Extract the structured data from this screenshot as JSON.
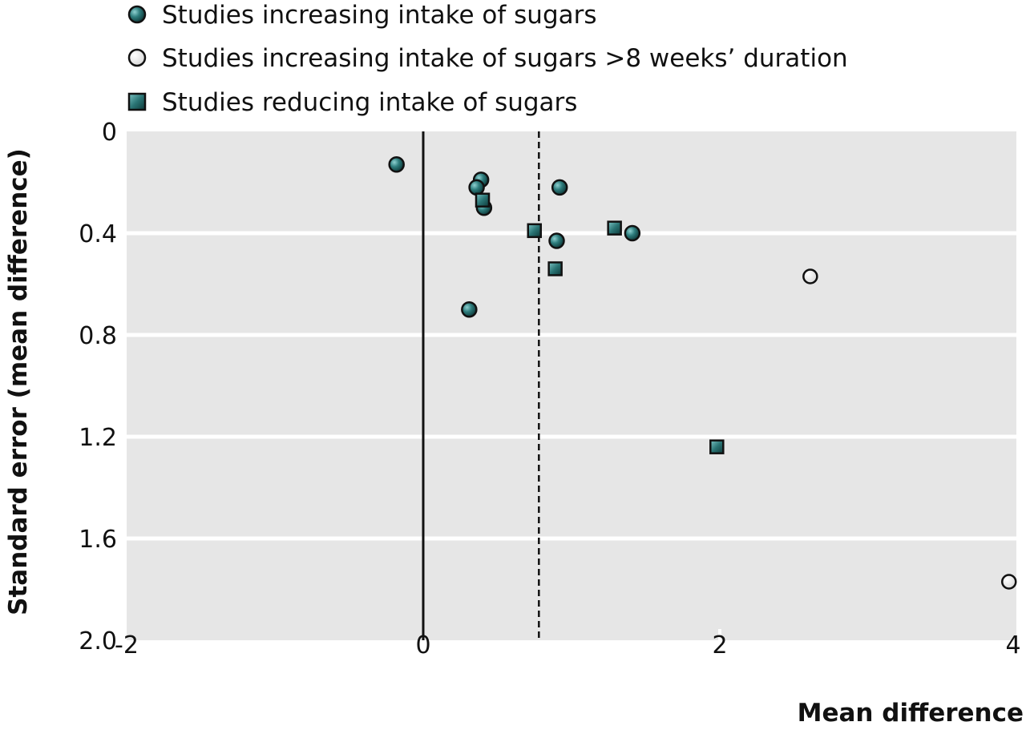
{
  "chart_data": {
    "type": "scatter",
    "xlabel": "Mean difference",
    "ylabel": "Standard error (mean difference)",
    "xlim": [
      -2,
      4
    ],
    "ylim": [
      0,
      2.0
    ],
    "y_inverted": true,
    "grid": "horizontal",
    "legend_position": "top-left",
    "x_ticks": [
      "-2",
      "0",
      "2",
      "4"
    ],
    "x_tick_values": [
      -2,
      0,
      2,
      4
    ],
    "y_ticks": [
      "0",
      "0.4",
      "0.8",
      "1.2",
      "1.6",
      "2.0"
    ],
    "y_tick_values": [
      0,
      0.4,
      0.8,
      1.2,
      1.6,
      2.0
    ],
    "reference_lines": [
      {
        "style": "solid",
        "x": 0
      },
      {
        "style": "dashed",
        "x": 0.78
      }
    ],
    "series": [
      {
        "name": "Studies increasing intake of sugars",
        "marker": "filled-circle",
        "points": [
          {
            "x": -0.18,
            "y": 0.13
          },
          {
            "x": 0.39,
            "y": 0.19
          },
          {
            "x": 0.36,
            "y": 0.22
          },
          {
            "x": 0.41,
            "y": 0.3
          },
          {
            "x": 0.92,
            "y": 0.22
          },
          {
            "x": 0.9,
            "y": 0.43
          },
          {
            "x": 1.41,
            "y": 0.4
          },
          {
            "x": 0.31,
            "y": 0.7
          }
        ]
      },
      {
        "name": "Studies increasing intake of sugars >8 weeks’ duration",
        "marker": "open-circle",
        "points": [
          {
            "x": 2.61,
            "y": 0.57
          },
          {
            "x": 3.95,
            "y": 1.77
          }
        ]
      },
      {
        "name": "Studies reducing intake of sugars",
        "marker": "square",
        "points": [
          {
            "x": 0.4,
            "y": 0.27
          },
          {
            "x": 0.75,
            "y": 0.39
          },
          {
            "x": 1.29,
            "y": 0.38
          },
          {
            "x": 0.89,
            "y": 0.54
          },
          {
            "x": 1.98,
            "y": 1.24
          }
        ]
      }
    ]
  },
  "colors": {
    "plot_background": "#e6e6e6",
    "gridline": "#ffffff",
    "marker_fill": "#1e5a5a",
    "marker_stroke": "#111111",
    "open_marker_fill": "#ffffff"
  }
}
